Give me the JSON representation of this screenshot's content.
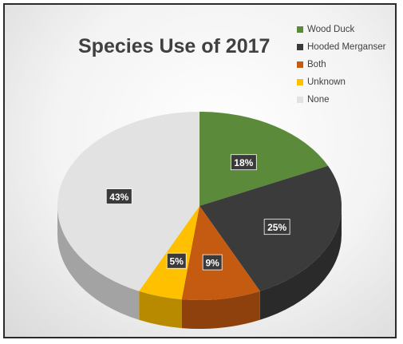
{
  "chart_data": {
    "type": "pie",
    "title": "Species Use of 2017",
    "categories": [
      "Wood Duck",
      "Hooded Merganser",
      "Both",
      "Unknown",
      "None"
    ],
    "values": [
      18,
      25,
      9,
      5,
      43
    ],
    "value_labels": [
      "18%",
      "25%",
      "9%",
      "5%",
      "43%"
    ],
    "colors": [
      "#5b8a3a",
      "#3b3b3b",
      "#c55a11",
      "#ffc000",
      "#e2e2e2"
    ],
    "legend_position": "top-right",
    "style": "3d"
  }
}
